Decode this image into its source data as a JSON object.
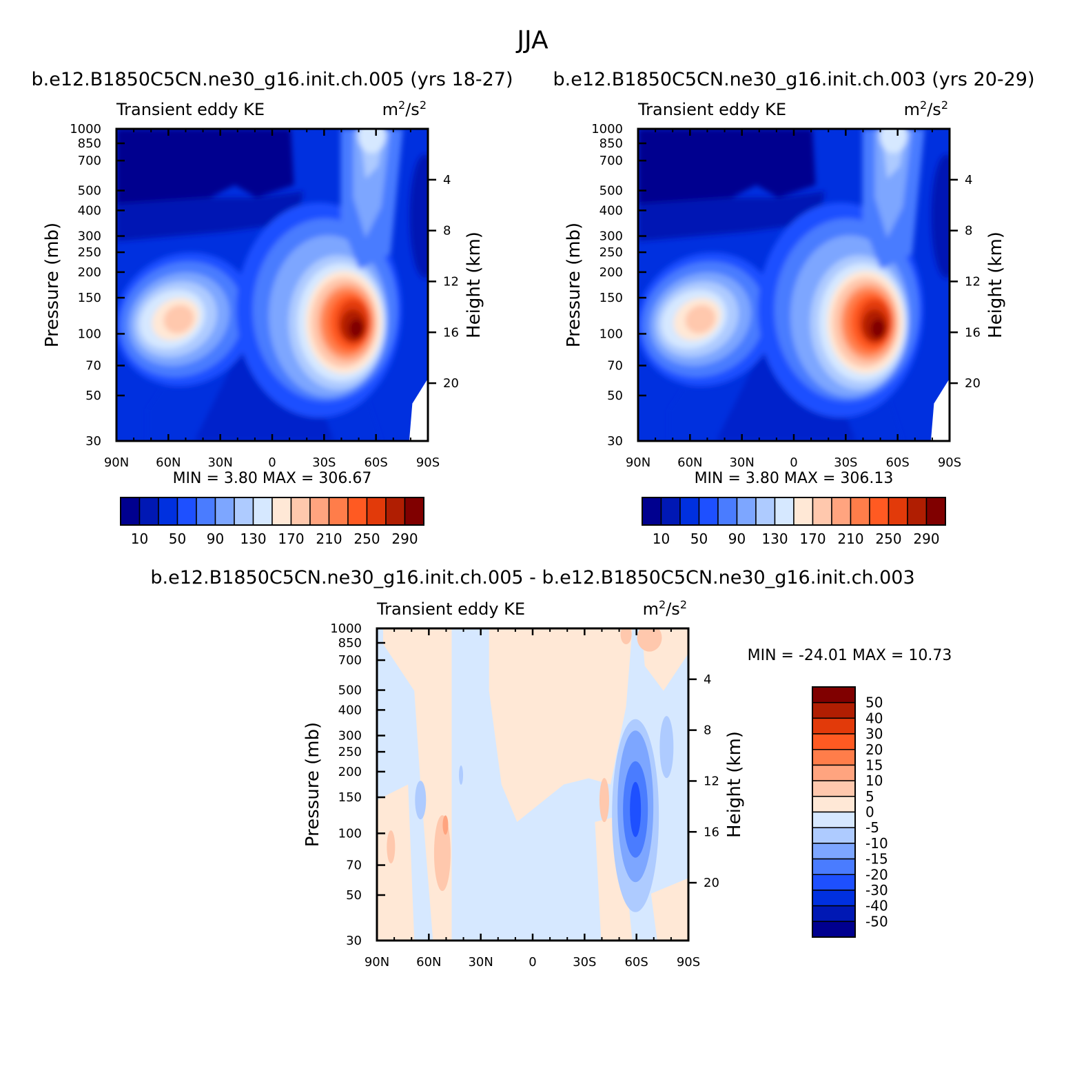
{
  "figure_title": "JJA",
  "units_sup_2": "2",
  "chart_data": [
    {
      "id": "case1",
      "type": "contour",
      "case_title": "b.e12.B1850C5CN.ne30_g16.init.ch.005 (yrs 18-27)",
      "variable": "Transient eddy KE",
      "units_base_m": "m",
      "units_base_s": "/s",
      "ylabel": "Pressure (mb)",
      "y2label": "Height (km)",
      "x_ticks": [
        "90N",
        "60N",
        "30N",
        "0",
        "30S",
        "60S",
        "90S"
      ],
      "x_range": [
        90,
        -90
      ],
      "pressure_ticks": [
        "30",
        "50",
        "70",
        "100",
        "150",
        "200",
        "250",
        "300",
        "400",
        "500",
        "700",
        "850",
        "1000"
      ],
      "pressure_range": [
        1000,
        30
      ],
      "height_ticks": [
        "4",
        "8",
        "12",
        "16",
        "20"
      ],
      "min_text": "MIN =    3.80   MAX = 306.67",
      "min": 3.8,
      "max": 306.67,
      "colorbar_labels": [
        "10",
        "50",
        "90",
        "130",
        "170",
        "210",
        "250",
        "290"
      ],
      "levels": [
        10,
        30,
        50,
        70,
        90,
        110,
        130,
        150,
        170,
        190,
        210,
        230,
        250,
        270,
        290
      ]
    },
    {
      "id": "case2",
      "type": "contour",
      "case_title": "b.e12.B1850C5CN.ne30_g16.init.ch.003 (yrs 20-29)",
      "variable": "Transient eddy KE",
      "units_base_m": "m",
      "units_base_s": "/s",
      "ylabel": "Pressure (mb)",
      "y2label": "Height (km)",
      "x_ticks": [
        "90N",
        "60N",
        "30N",
        "0",
        "30S",
        "60S",
        "90S"
      ],
      "x_range": [
        90,
        -90
      ],
      "pressure_ticks": [
        "30",
        "50",
        "70",
        "100",
        "150",
        "200",
        "250",
        "300",
        "400",
        "500",
        "700",
        "850",
        "1000"
      ],
      "pressure_range": [
        1000,
        30
      ],
      "height_ticks": [
        "4",
        "8",
        "12",
        "16",
        "20"
      ],
      "min_text": "MIN =    3.80   MAX = 306.13",
      "min": 3.8,
      "max": 306.13,
      "colorbar_labels": [
        "10",
        "50",
        "90",
        "130",
        "170",
        "210",
        "250",
        "290"
      ],
      "levels": [
        10,
        30,
        50,
        70,
        90,
        110,
        130,
        150,
        170,
        190,
        210,
        230,
        250,
        270,
        290
      ]
    },
    {
      "id": "diff",
      "type": "contour",
      "case_title": "b.e12.B1850C5CN.ne30_g16.init.ch.005 - b.e12.B1850C5CN.ne30_g16.init.ch.003",
      "variable": "Transient eddy KE",
      "units_base_m": "m",
      "units_base_s": "/s",
      "ylabel": "Pressure (mb)",
      "y2label": "Height (km)",
      "x_ticks": [
        "90N",
        "60N",
        "30N",
        "0",
        "30S",
        "60S",
        "90S"
      ],
      "x_range": [
        90,
        -90
      ],
      "pressure_ticks": [
        "30",
        "50",
        "70",
        "100",
        "150",
        "200",
        "250",
        "300",
        "400",
        "500",
        "700",
        "850",
        "1000"
      ],
      "pressure_range": [
        1000,
        30
      ],
      "height_ticks": [
        "4",
        "8",
        "12",
        "16",
        "20"
      ],
      "min_text": "MIN = -24.01   MAX =   10.73",
      "min": -24.01,
      "max": 10.73,
      "colorbar_labels": [
        "50",
        "40",
        "30",
        "20",
        "15",
        "10",
        "5",
        "0",
        "-5",
        "-10",
        "-15",
        "-20",
        "-30",
        "-40",
        "-50"
      ],
      "levels": [
        -50,
        -40,
        -30,
        -20,
        -15,
        -10,
        -5,
        0,
        5,
        10,
        15,
        20,
        30,
        40,
        50
      ]
    }
  ],
  "colors": {
    "ramp16": [
      "#00008f",
      "#0018b4",
      "#0030df",
      "#1e50ff",
      "#4a7cff",
      "#7da6ff",
      "#aecbff",
      "#d6e8ff",
      "#ffe8d6",
      "#ffc8ad",
      "#ffa47f",
      "#ff7d4a",
      "#ff5a22",
      "#e23a0a",
      "#b01e02",
      "#800000"
    ]
  }
}
